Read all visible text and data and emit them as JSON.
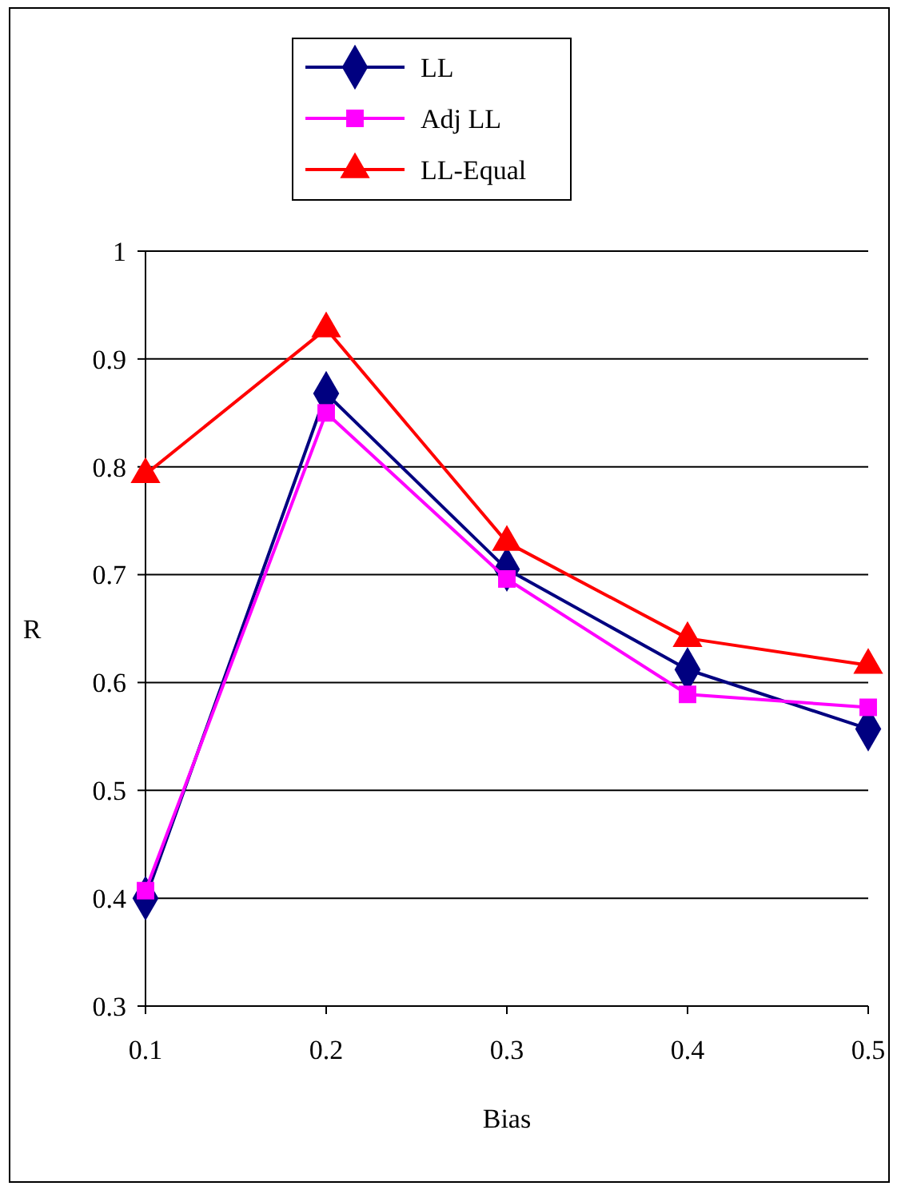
{
  "chart_data": {
    "type": "line",
    "xlabel": "Bias",
    "ylabel": "R",
    "x": [
      0.1,
      0.2,
      0.3,
      0.4,
      0.5
    ],
    "xlim": [
      0.1,
      0.5
    ],
    "xticks": [
      0.1,
      0.2,
      0.3,
      0.4,
      0.5
    ],
    "ylim": [
      0.3,
      1
    ],
    "yticks": [
      0.3,
      0.4,
      0.5,
      0.6,
      0.7,
      0.8,
      0.9,
      1
    ],
    "grid": "y",
    "legend": "top",
    "series": [
      {
        "name": "LL",
        "color": "#000080",
        "marker": "diamond",
        "values": [
          0.4,
          0.868,
          0.705,
          0.612,
          0.557
        ]
      },
      {
        "name": "Adj LL",
        "color": "#ff00ff",
        "marker": "square",
        "values": [
          0.407,
          0.85,
          0.696,
          0.589,
          0.577
        ]
      },
      {
        "name": "LL-Equal",
        "color": "#ff0000",
        "marker": "triangle",
        "values": [
          0.793,
          0.928,
          0.73,
          0.641,
          0.616
        ]
      }
    ]
  }
}
